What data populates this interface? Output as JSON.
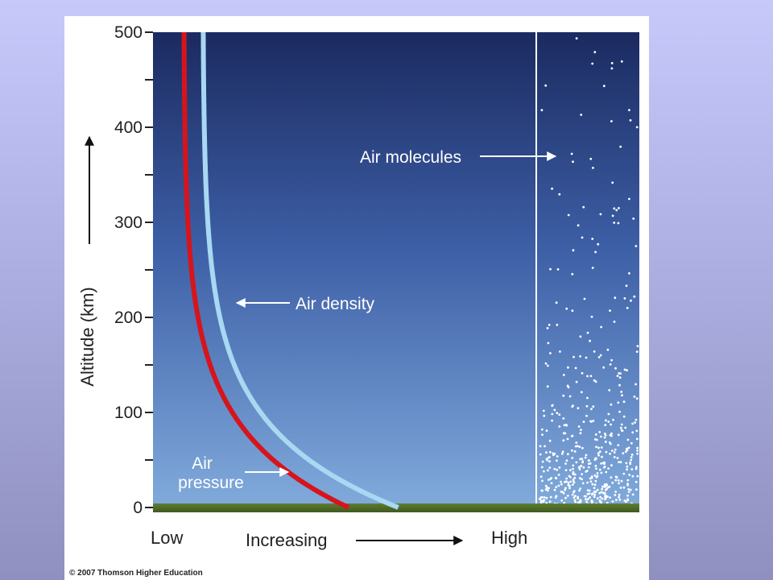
{
  "chart_data": {
    "type": "line",
    "ylabel": "Altitude (km)",
    "ylim": [
      0,
      500
    ],
    "yticks": [
      "0",
      "100",
      "200",
      "300",
      "400",
      "500"
    ],
    "x_axis": {
      "low": "Low",
      "mid": "Increasing",
      "high": "High"
    },
    "series": [
      {
        "name": "Air pressure",
        "label": "Air\npressure",
        "color": "#d7141c",
        "scale_height_km": 82,
        "x_at_sea_level": 0.51,
        "x_asymptote": 0.08
      },
      {
        "name": "Air density",
        "label": "Air density",
        "color": "#a8d8f2",
        "scale_height_km": 82,
        "x_at_sea_level": 0.64,
        "x_asymptote": 0.13
      }
    ],
    "panel_label": "Air molecules",
    "grid": false
  },
  "copyright": "© 2007 Thomson Higher Education",
  "colors": {
    "sky_top": "#1b2a60",
    "sky_bottom": "#7fa9dc",
    "ground": "#4a6a25"
  }
}
